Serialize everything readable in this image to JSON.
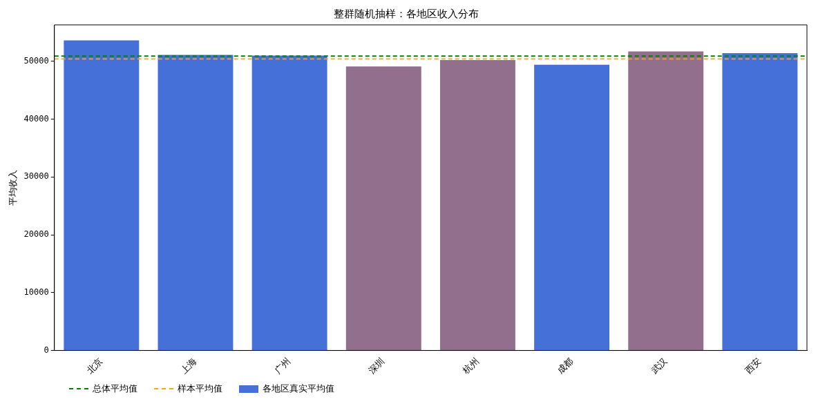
{
  "chart_data": {
    "type": "bar",
    "title": "整群随机抽样：各地区收入分布",
    "ylabel": "平均收入",
    "categories": [
      "北京",
      "上海",
      "广州",
      "深圳",
      "杭州",
      "成都",
      "武汉",
      "西安"
    ],
    "series": [
      {
        "name": "各地区真实平均值",
        "colors": [
          "#4570d8",
          "#4570d8",
          "#4570d8",
          "#926f8c",
          "#926f8c",
          "#4570d8",
          "#926f8c",
          "#4570d8"
        ],
        "values": [
          53600,
          51100,
          51000,
          49100,
          50200,
          49400,
          51700,
          51400
        ]
      }
    ],
    "ylim": [
      0,
      56300
    ],
    "yticks": [
      0,
      10000,
      20000,
      30000,
      40000,
      50000
    ],
    "ref_lines": [
      {
        "axis": "y",
        "value": 50900,
        "label": "总体平均值",
        "color": "#008000",
        "line_style": "dashed"
      },
      {
        "axis": "y",
        "value": 50400,
        "label": "样本平均值",
        "color": "#ffa500",
        "line_style": "dashed"
      }
    ],
    "legend": "bottom left",
    "grid": false
  }
}
